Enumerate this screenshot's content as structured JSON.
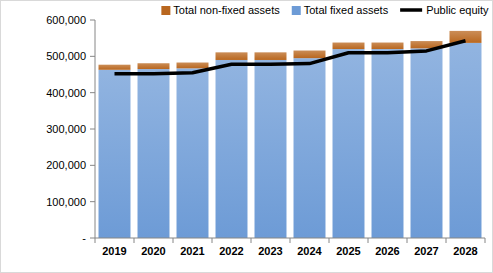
{
  "chart_data": {
    "type": "bar",
    "stacked": true,
    "grid": false,
    "legend": "top",
    "categories": [
      "2019",
      "2020",
      "2021",
      "2022",
      "2023",
      "2024",
      "2025",
      "2026",
      "2027",
      "2028"
    ],
    "series": [
      {
        "name": "Total non-fixed assets",
        "type": "bar",
        "color": "#b9671f",
        "values": [
          14000,
          16000,
          16000,
          21000,
          21000,
          21000,
          18000,
          18000,
          20000,
          33000
        ]
      },
      {
        "name": "Total fixed assets",
        "type": "bar",
        "color": "#6d9bd6",
        "values": [
          463000,
          465000,
          467000,
          490000,
          490000,
          495000,
          520000,
          520000,
          522000,
          537000
        ]
      },
      {
        "name": "Public equity",
        "type": "line",
        "color": "#000000",
        "values": [
          452000,
          452000,
          455000,
          478000,
          478000,
          480000,
          510000,
          510000,
          515000,
          543000
        ]
      }
    ],
    "ylim": [
      0,
      600000
    ],
    "yticks": [
      {
        "value": 0,
        "label": "-"
      },
      {
        "value": 100000,
        "label": "100,000"
      },
      {
        "value": 200000,
        "label": "200,000"
      },
      {
        "value": 300000,
        "label": "300,000"
      },
      {
        "value": 400000,
        "label": "400,000"
      },
      {
        "value": 500000,
        "label": "500,000"
      },
      {
        "value": 600000,
        "label": "600,000"
      }
    ]
  }
}
